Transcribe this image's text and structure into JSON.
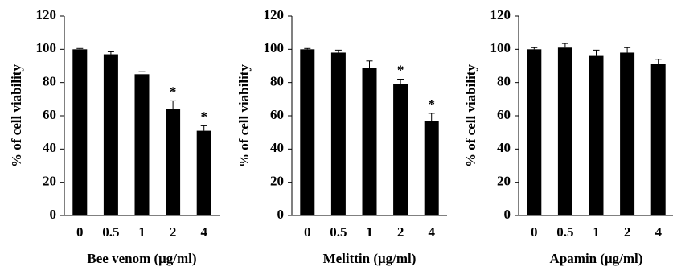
{
  "chart_data": [
    {
      "type": "bar",
      "x_label": "Bee venom (μg/ml)",
      "y_label": "% of cell viability",
      "categories": [
        "0",
        "0.5",
        "1",
        "2",
        "4"
      ],
      "values": [
        100,
        97,
        85,
        64,
        51
      ],
      "errors": [
        0.5,
        1.5,
        1.5,
        5,
        3
      ],
      "markers": [
        null,
        null,
        null,
        "*",
        "*"
      ],
      "color": "#000000",
      "ylim": [
        0,
        120
      ],
      "yticks": [
        0,
        20,
        40,
        60,
        80,
        100,
        120
      ]
    },
    {
      "type": "bar",
      "x_label": "Melittin (μg/ml)",
      "y_label": "% of cell viability",
      "categories": [
        "0",
        "0.5",
        "1",
        "2",
        "4"
      ],
      "values": [
        100,
        98,
        89,
        79,
        57
      ],
      "errors": [
        0.5,
        1.5,
        4,
        3,
        4.5
      ],
      "markers": [
        null,
        null,
        null,
        "*",
        "*"
      ],
      "color": "#000000",
      "ylim": [
        0,
        120
      ],
      "yticks": [
        0,
        20,
        40,
        60,
        80,
        100,
        120
      ]
    },
    {
      "type": "bar",
      "x_label": "Apamin (μg/ml)",
      "y_label": "% of cell viability",
      "categories": [
        "0",
        "0.5",
        "1",
        "2",
        "4"
      ],
      "values": [
        100,
        101,
        96,
        98,
        91
      ],
      "errors": [
        1,
        2.5,
        3.5,
        3,
        3
      ],
      "markers": [
        null,
        null,
        null,
        null,
        null
      ],
      "color": "#000000",
      "ylim": [
        0,
        120
      ],
      "yticks": [
        0,
        20,
        40,
        60,
        80,
        100,
        120
      ]
    }
  ]
}
